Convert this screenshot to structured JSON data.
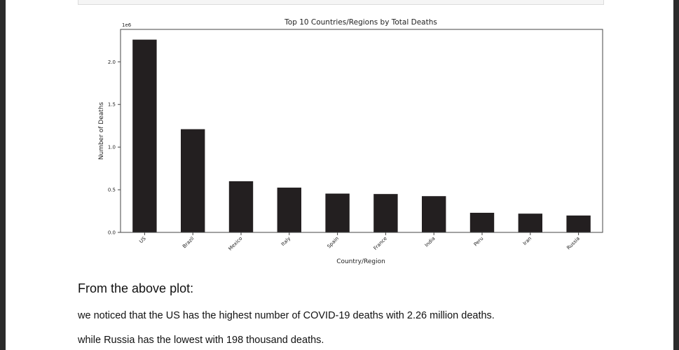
{
  "chart_data": {
    "type": "bar",
    "title": "Top 10 Countries/Regions by Total Deaths",
    "xlabel": "Country/Region",
    "ylabel": "Number of Deaths",
    "offset_label": "1e6",
    "categories": [
      "US",
      "Brazil",
      "Mexico",
      "Italy",
      "Spain",
      "France",
      "India",
      "Peru",
      "Iran",
      "Russia"
    ],
    "values": [
      2260000,
      1210000,
      600000,
      525000,
      455000,
      450000,
      425000,
      230000,
      220000,
      198000
    ],
    "ylim": [
      0,
      2380000
    ],
    "yticks": [
      0,
      500000,
      1000000,
      1500000,
      2000000
    ],
    "ytick_labels": [
      "0.0",
      "0.5",
      "1.0",
      "1.5",
      "2.0"
    ],
    "bar_color": "#231f20"
  },
  "text": {
    "heading": "From the above plot:",
    "line1": "we noticed that the US has the highest number of COVID-19 deaths with 2.26 million deaths.",
    "line2": "while Russia has the lowest with 198 thousand deaths."
  }
}
